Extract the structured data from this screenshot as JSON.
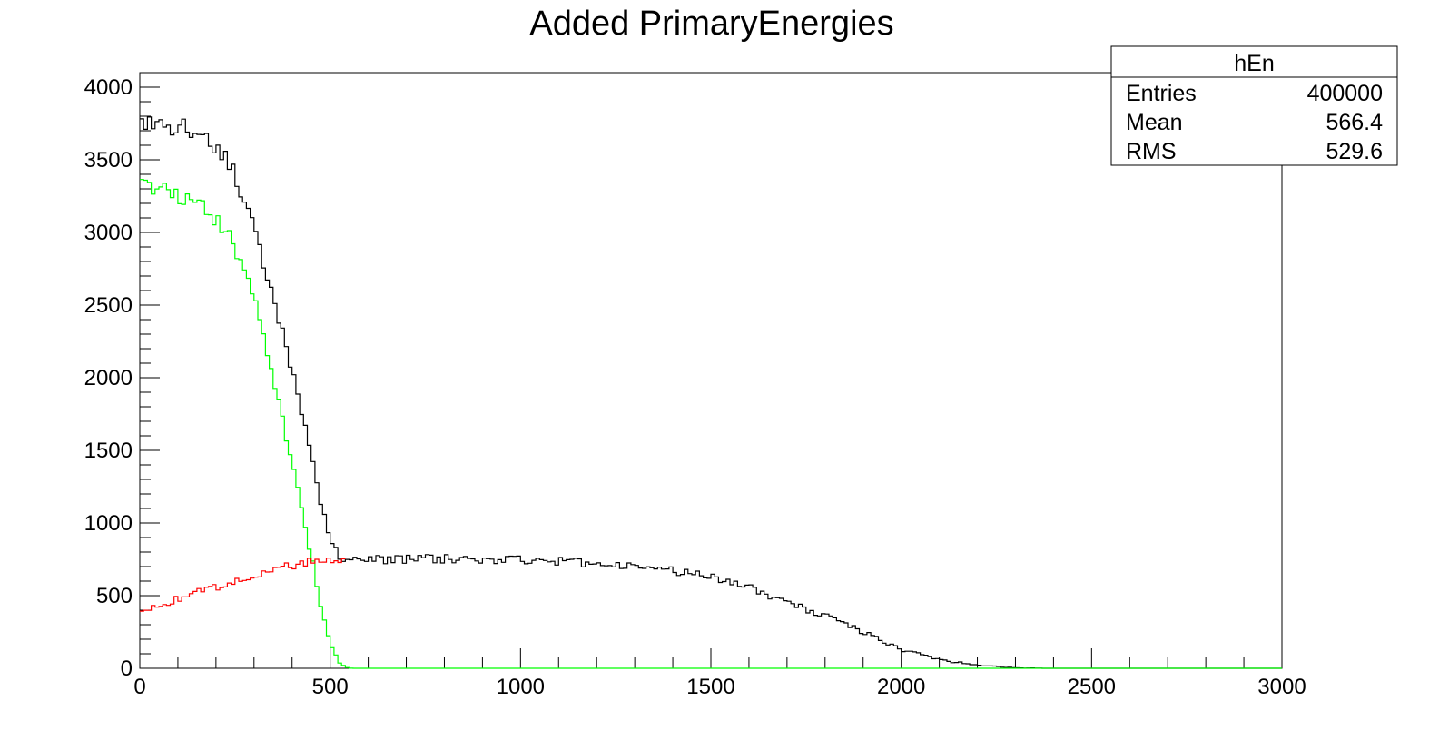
{
  "chart_data": {
    "type": "histogram",
    "title": "Added PrimaryEnergies",
    "xlabel": "",
    "ylabel": "",
    "xlim": [
      0,
      3000
    ],
    "ylim": [
      0,
      4100
    ],
    "x_ticks": [
      0,
      500,
      1000,
      1500,
      2000,
      2500,
      3000
    ],
    "y_ticks": [
      0,
      500,
      1000,
      1500,
      2000,
      2500,
      3000,
      3500,
      4000
    ],
    "grid": false,
    "bin_width": 10,
    "stats_box": {
      "name": "hEn",
      "rows": [
        {
          "label": "Entries",
          "value": "400000"
        },
        {
          "label": "Mean",
          "value": "566.4"
        },
        {
          "label": "RMS",
          "value": "529.6"
        }
      ]
    },
    "series": [
      {
        "color": "#000000",
        "points": [
          [
            0,
            3850
          ],
          [
            20,
            3750
          ],
          [
            50,
            3720
          ],
          [
            100,
            3730
          ],
          [
            150,
            3700
          ],
          [
            200,
            3600
          ],
          [
            230,
            3500
          ],
          [
            250,
            3380
          ],
          [
            270,
            3250
          ],
          [
            300,
            3050
          ],
          [
            320,
            2850
          ],
          [
            340,
            2650
          ],
          [
            360,
            2450
          ],
          [
            380,
            2250
          ],
          [
            400,
            2050
          ],
          [
            420,
            1850
          ],
          [
            440,
            1600
          ],
          [
            460,
            1350
          ],
          [
            480,
            1100
          ],
          [
            500,
            900
          ],
          [
            520,
            780
          ],
          [
            540,
            740
          ],
          [
            600,
            745
          ],
          [
            700,
            750
          ],
          [
            800,
            755
          ],
          [
            900,
            750
          ],
          [
            1000,
            750
          ],
          [
            1100,
            740
          ],
          [
            1200,
            720
          ],
          [
            1300,
            700
          ],
          [
            1400,
            670
          ],
          [
            1500,
            630
          ],
          [
            1600,
            560
          ],
          [
            1700,
            450
          ],
          [
            1800,
            360
          ],
          [
            1900,
            250
          ],
          [
            2000,
            130
          ],
          [
            2100,
            60
          ],
          [
            2200,
            20
          ],
          [
            2300,
            2
          ],
          [
            2400,
            0
          ],
          [
            3000,
            0
          ]
        ]
      },
      {
        "color": "#00ff00",
        "points": [
          [
            0,
            3450
          ],
          [
            20,
            3350
          ],
          [
            50,
            3300
          ],
          [
            100,
            3260
          ],
          [
            150,
            3230
          ],
          [
            200,
            3100
          ],
          [
            230,
            3000
          ],
          [
            250,
            2850
          ],
          [
            280,
            2700
          ],
          [
            300,
            2550
          ],
          [
            320,
            2350
          ],
          [
            340,
            2150
          ],
          [
            360,
            1900
          ],
          [
            380,
            1650
          ],
          [
            400,
            1400
          ],
          [
            420,
            1150
          ],
          [
            440,
            900
          ],
          [
            460,
            650
          ],
          [
            480,
            380
          ],
          [
            500,
            180
          ],
          [
            520,
            50
          ],
          [
            540,
            5
          ],
          [
            560,
            0
          ],
          [
            3000,
            0
          ]
        ]
      },
      {
        "color": "#ff0000",
        "points": [
          [
            0,
            400
          ],
          [
            50,
            430
          ],
          [
            100,
            480
          ],
          [
            150,
            520
          ],
          [
            200,
            560
          ],
          [
            250,
            600
          ],
          [
            300,
            640
          ],
          [
            350,
            680
          ],
          [
            400,
            710
          ],
          [
            450,
            730
          ],
          [
            500,
            745
          ],
          [
            540,
            750
          ]
        ]
      }
    ]
  }
}
